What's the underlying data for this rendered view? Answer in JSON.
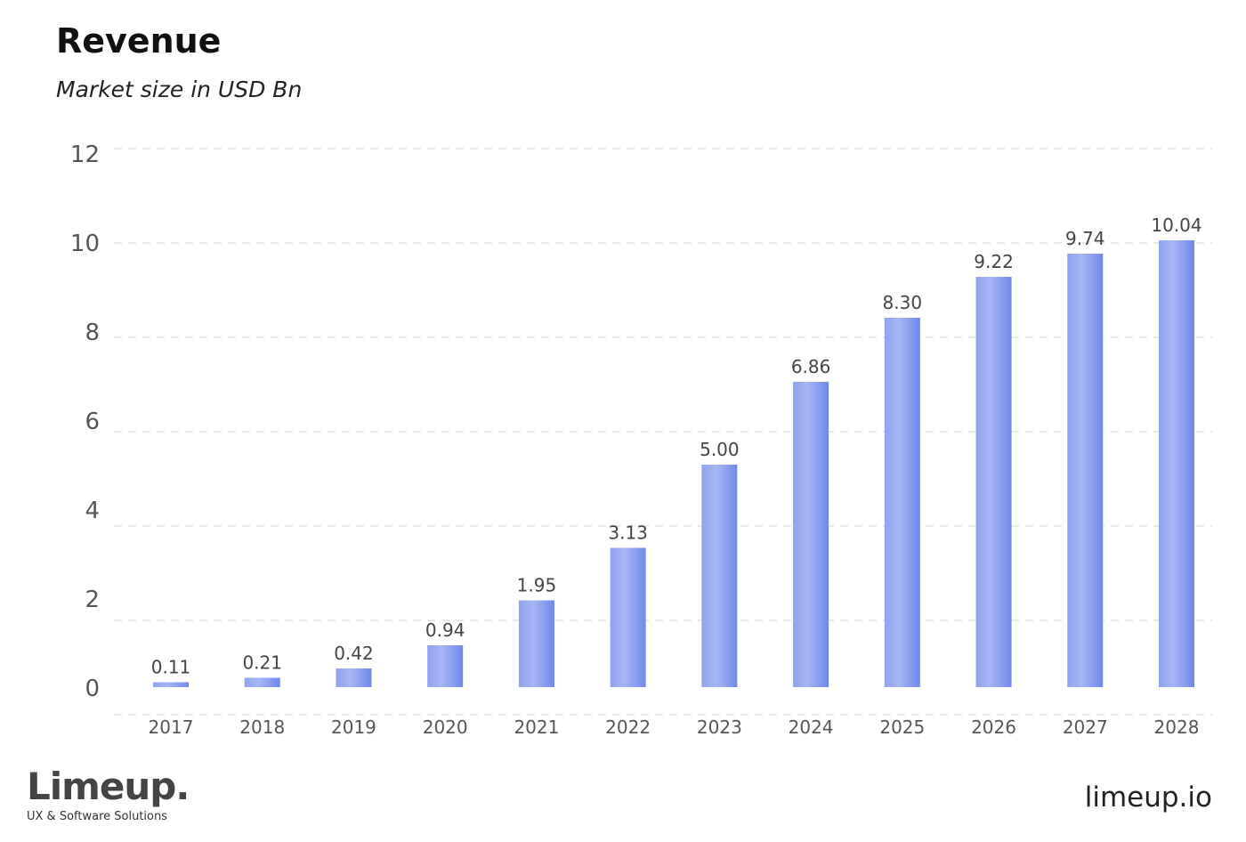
{
  "header": {
    "title": "Revenue",
    "subtitle": "Market size in USD Bn"
  },
  "footer": {
    "logo_text": "Limeup.",
    "logo_tagline": "UX & Software Solutions",
    "website": "limeup.io"
  },
  "chart_data": {
    "type": "bar",
    "title": "Revenue",
    "subtitle": "Market size in USD Bn",
    "categories": [
      "2017",
      "2018",
      "2019",
      "2020",
      "2021",
      "2022",
      "2023",
      "2024",
      "2025",
      "2026",
      "2027",
      "2028"
    ],
    "values": [
      0.11,
      0.21,
      0.42,
      0.94,
      1.95,
      3.13,
      5.0,
      6.86,
      8.3,
      9.22,
      9.74,
      10.04
    ],
    "data_labels": [
      "0.11",
      "0.21",
      "0.42",
      "0.94",
      "1.95",
      "3.13",
      "5.00",
      "6.86",
      "8.30",
      "9.22",
      "9.74",
      "10.04"
    ],
    "y_ticks": [
      "0",
      "2",
      "4",
      "6",
      "8",
      "10",
      "12"
    ],
    "ylim": [
      0,
      12
    ],
    "grid": true,
    "bar_colors": {
      "left": "#8fa3ee",
      "mid": "#a6b7f3",
      "right": "#6f88ea"
    }
  }
}
